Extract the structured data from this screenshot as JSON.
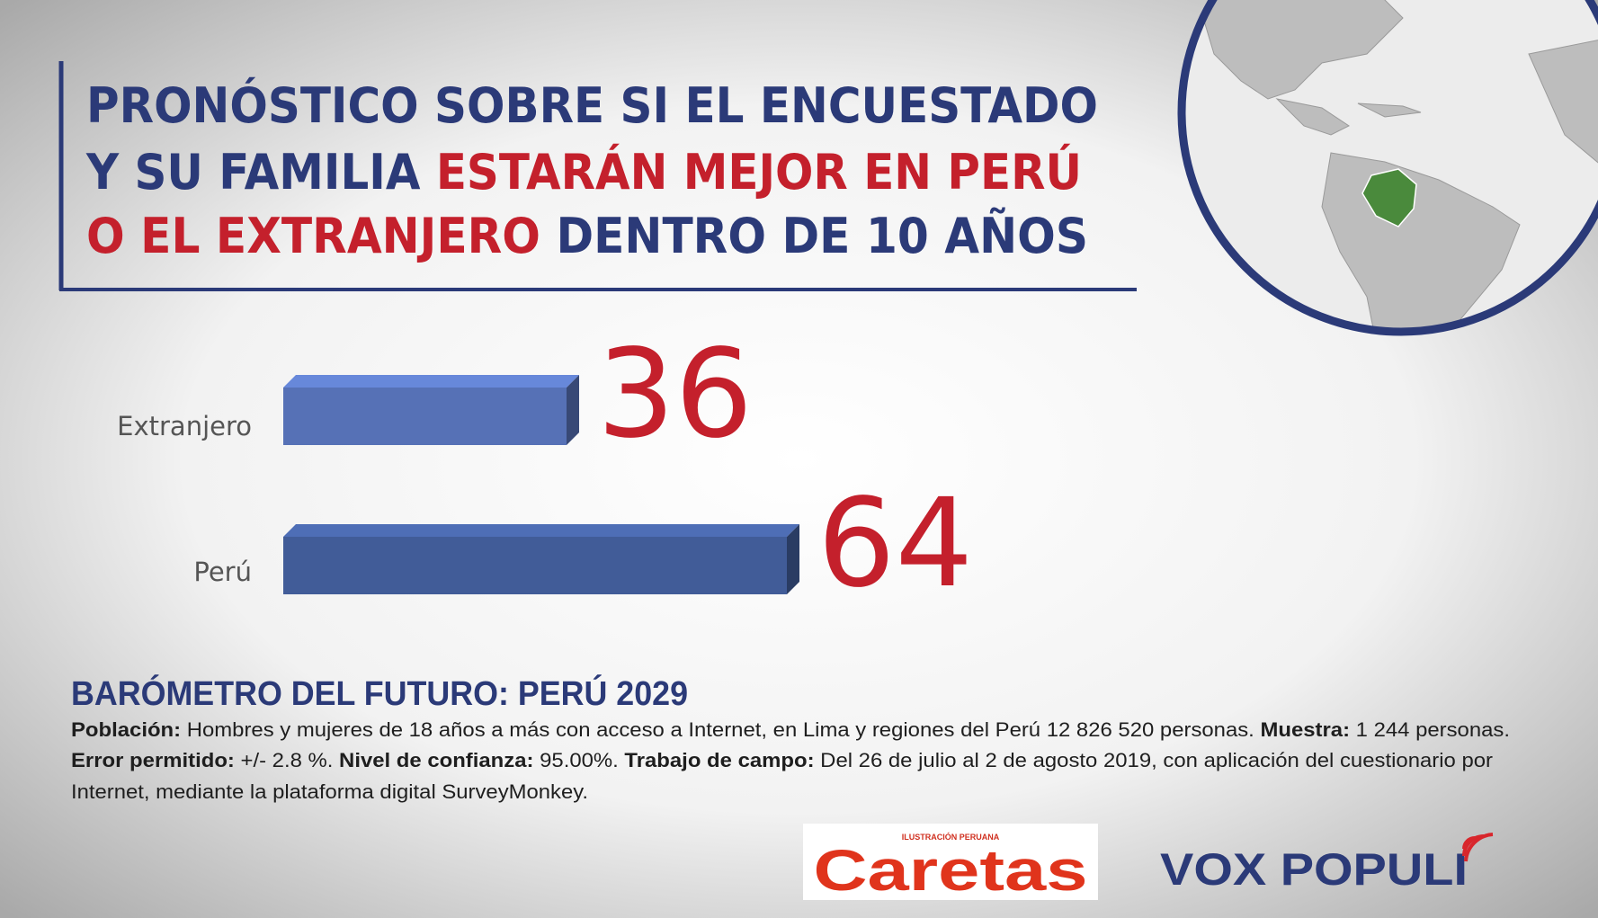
{
  "chart_data": {
    "type": "bar",
    "orientation": "horizontal",
    "title_lines": [
      [
        {
          "text": "PRONÓSTICO SOBRE SI EL ENCUESTADO",
          "color": "#2b3a78"
        }
      ],
      [
        {
          "text": "Y SU FAMILIA ",
          "color": "#2b3a78"
        },
        {
          "text": "ESTARÁN MEJOR EN PERÚ",
          "color": "#c4202c"
        }
      ],
      [
        {
          "text": "O EL EXTRANJERO",
          "color": "#c4202c"
        },
        {
          "text": " DENTRO DE 10 AÑOS",
          "color": "#2b3a78"
        }
      ]
    ],
    "categories": [
      "Extranjero",
      "Perú"
    ],
    "values": [
      36,
      64
    ],
    "colors": [
      "#5671b6",
      "#415c98"
    ],
    "value_label_color": "#c4202c"
  },
  "footer": {
    "heading": "BARÓMETRO DEL FUTURO: PERÚ 2029",
    "lines": [
      [
        {
          "text": "Población:",
          "bold": true
        },
        {
          "text": " Hombres y mujeres de 18 años a más con acceso a Internet, en Lima y regiones del Perú 12 826 520 personas. ",
          "bold": false
        },
        {
          "text": "Muestra:",
          "bold": true
        },
        {
          "text": " 1 244 personas.",
          "bold": false
        }
      ],
      [
        {
          "text": "Error permitido:",
          "bold": true
        },
        {
          "text": " +/- 2.8 %. ",
          "bold": false
        },
        {
          "text": "Nivel de confianza:",
          "bold": true
        },
        {
          "text": " 95.00%. ",
          "bold": false
        },
        {
          "text": "Trabajo de campo:",
          "bold": true
        },
        {
          "text": " Del 26 de julio al 2 de agosto 2019, con aplicación del cuestionario por",
          "bold": false
        }
      ],
      [
        {
          "text": "Internet, mediante la plataforma digital SurveyMonkey.",
          "bold": false
        }
      ]
    ]
  },
  "logos": {
    "caretas_tagline": "ILUSTRACIÓN PERUANA",
    "caretas": "Caretas",
    "voxpopuli": "VOX POPULI"
  }
}
